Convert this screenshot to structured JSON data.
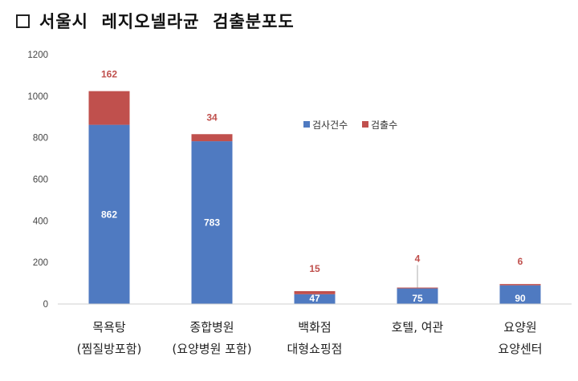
{
  "header": {
    "title": "서울시  레지오넬라균  검출분포도"
  },
  "chart_data": {
    "type": "bar",
    "stacked": true,
    "categories": [
      [
        "목욕탕",
        "(찜질방포함)"
      ],
      [
        "종합병원",
        "(요양병원 포함)"
      ],
      [
        "백화점",
        "대형쇼핑점"
      ],
      [
        "호텔, 여관"
      ],
      [
        "요양원",
        "요양센터"
      ]
    ],
    "series": [
      {
        "name": "검사건수",
        "color": "#4f7ac1",
        "values": [
          862,
          783,
          47,
          75,
          90
        ]
      },
      {
        "name": "검출수",
        "color": "#c0504d",
        "values": [
          162,
          34,
          15,
          4,
          6
        ]
      }
    ],
    "ylim": [
      0,
      1200
    ],
    "yticks": [
      "0",
      "200",
      "400",
      "600",
      "800",
      "1000",
      "1200"
    ],
    "grid": false,
    "legend_position": "top-right"
  }
}
